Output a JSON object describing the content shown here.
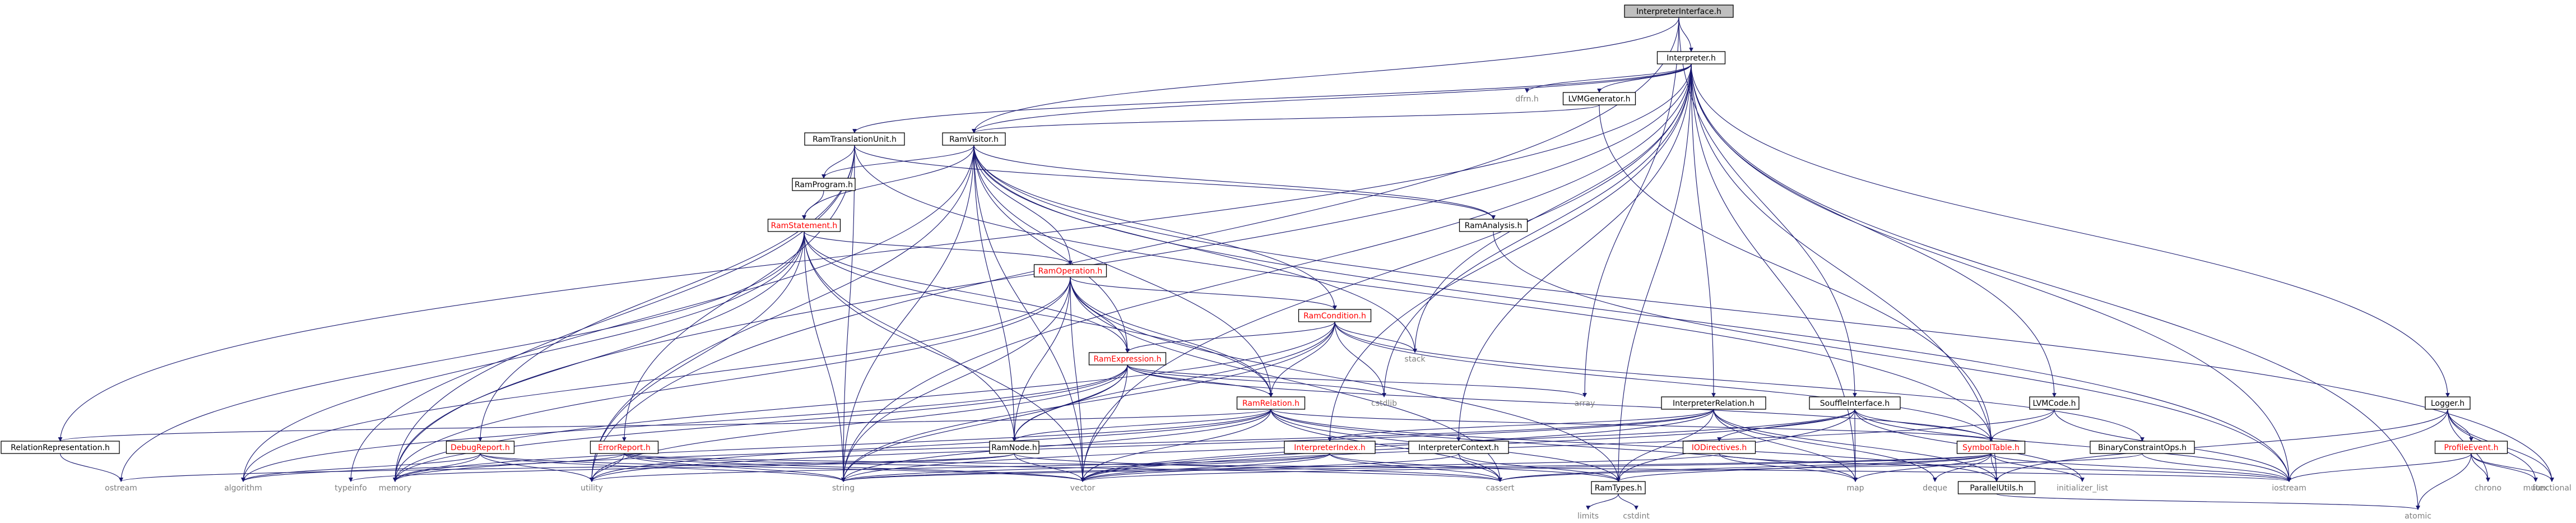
{
  "diagram": {
    "colors": {
      "edge": "#191970",
      "node_text_normal": "#000000",
      "node_text_header": "#ff0000",
      "node_text_system": "#7f7f7f",
      "node_border": "#000000",
      "root_fill": "#bfbfbf"
    },
    "nodes": [
      {
        "id": "n_root",
        "label": "InterpreterInterface.h",
        "style": "root"
      },
      {
        "id": "n_interp",
        "label": "Interpreter.h",
        "style": "file"
      },
      {
        "id": "n_dfrn",
        "label": "dfrn.h",
        "style": "system"
      },
      {
        "id": "n_llvmgen",
        "label": "LVMGenerator.h",
        "style": "file"
      },
      {
        "id": "n_ramvisitor",
        "label": "RamVisitor.h",
        "style": "file"
      },
      {
        "id": "n_ramtrans",
        "label": "RamTranslationUnit.h",
        "style": "file"
      },
      {
        "id": "n_ramprogram",
        "label": "RamProgram.h",
        "style": "file"
      },
      {
        "id": "n_ramanalysis",
        "label": "RamAnalysis.h",
        "style": "file"
      },
      {
        "id": "n_ramstatement",
        "label": "RamStatement.h",
        "style": "header"
      },
      {
        "id": "n_ramoperation",
        "label": "RamOperation.h",
        "style": "header"
      },
      {
        "id": "n_ramcondition",
        "label": "RamCondition.h",
        "style": "header"
      },
      {
        "id": "n_ramexpression",
        "label": "RamExpression.h",
        "style": "header"
      },
      {
        "id": "n_ramrelation",
        "label": "RamRelation.h",
        "style": "header"
      },
      {
        "id": "n_ramnode",
        "label": "RamNode.h",
        "style": "file"
      },
      {
        "id": "n_ramtypes",
        "label": "RamTypes.h",
        "style": "file"
      },
      {
        "id": "n_relrep",
        "label": "RelationRepresentation.h",
        "style": "file"
      },
      {
        "id": "n_debugreport",
        "label": "DebugReport.h",
        "style": "header"
      },
      {
        "id": "n_errorreport",
        "label": "ErrorReport.h",
        "style": "header"
      },
      {
        "id": "n_interprel",
        "label": "InterpreterRelation.h",
        "style": "file"
      },
      {
        "id": "n_interpindex",
        "label": "InterpreterIndex.h",
        "style": "header"
      },
      {
        "id": "n_interpctx",
        "label": "InterpreterContext.h",
        "style": "file"
      },
      {
        "id": "n_souffleif",
        "label": "SouffleInterface.h",
        "style": "file"
      },
      {
        "id": "n_iodirectives",
        "label": "IODirectives.h",
        "style": "header"
      },
      {
        "id": "n_symboltable",
        "label": "SymbolTable.h",
        "style": "header"
      },
      {
        "id": "n_binconstraint",
        "label": "BinaryConstraintOps.h",
        "style": "file"
      },
      {
        "id": "n_llvmcode",
        "label": "LVMCode.h",
        "style": "file"
      },
      {
        "id": "n_logger",
        "label": "Logger.h",
        "style": "file"
      },
      {
        "id": "n_profilevent",
        "label": "ProfileEvent.h",
        "style": "header"
      },
      {
        "id": "n_parallelutils",
        "label": "ParallelUtils.h",
        "style": "file"
      },
      {
        "id": "n_stack",
        "label": "stack",
        "style": "system"
      },
      {
        "id": "n_cstdlib",
        "label": "cstdlib",
        "style": "system"
      },
      {
        "id": "n_array",
        "label": "array",
        "style": "system"
      },
      {
        "id": "n_ostream",
        "label": "ostream",
        "style": "system"
      },
      {
        "id": "n_algorithm",
        "label": "algorithm",
        "style": "system"
      },
      {
        "id": "n_typeinfo",
        "label": "typeinfo",
        "style": "system"
      },
      {
        "id": "n_memory",
        "label": "memory",
        "style": "system"
      },
      {
        "id": "n_utility",
        "label": "utility",
        "style": "system"
      },
      {
        "id": "n_string",
        "label": "string",
        "style": "system"
      },
      {
        "id": "n_vector",
        "label": "vector",
        "style": "system"
      },
      {
        "id": "n_cassert",
        "label": "cassert",
        "style": "system"
      },
      {
        "id": "n_map",
        "label": "map",
        "style": "system"
      },
      {
        "id": "n_deque",
        "label": "deque",
        "style": "system"
      },
      {
        "id": "n_initlist",
        "label": "initializer_list",
        "style": "system"
      },
      {
        "id": "n_iostream",
        "label": "iostream",
        "style": "system"
      },
      {
        "id": "n_chrono",
        "label": "chrono",
        "style": "system"
      },
      {
        "id": "n_mutex",
        "label": "mutex",
        "style": "system"
      },
      {
        "id": "n_functional",
        "label": "functional",
        "style": "system"
      },
      {
        "id": "n_atomic",
        "label": "atomic",
        "style": "system"
      },
      {
        "id": "n_limits",
        "label": "limits",
        "style": "system"
      },
      {
        "id": "n_cstdint",
        "label": "cstdint",
        "style": "system"
      }
    ],
    "edges": [
      [
        "n_root",
        "n_interp"
      ],
      [
        "n_root",
        "n_ramvisitor"
      ],
      [
        "n_root",
        "n_souffleif"
      ],
      [
        "n_root",
        "n_utility"
      ],
      [
        "n_root",
        "n_array"
      ],
      [
        "n_interp",
        "n_dfrn"
      ],
      [
        "n_interp",
        "n_llvmgen"
      ],
      [
        "n_interp",
        "n_ramvisitor"
      ],
      [
        "n_interp",
        "n_ramtrans"
      ],
      [
        "n_interp",
        "n_relrep"
      ],
      [
        "n_interp",
        "n_interprel"
      ],
      [
        "n_interp",
        "n_interpindex"
      ],
      [
        "n_interp",
        "n_interpctx"
      ],
      [
        "n_interp",
        "n_llvmcode"
      ],
      [
        "n_interp",
        "n_logger"
      ],
      [
        "n_interp",
        "n_stack"
      ],
      [
        "n_interp",
        "n_cstdlib"
      ],
      [
        "n_interp",
        "n_iostream"
      ],
      [
        "n_interp",
        "n_atomic"
      ],
      [
        "n_interp",
        "n_ramtypes"
      ],
      [
        "n_interp",
        "n_parallelutils"
      ],
      [
        "n_interp",
        "n_string"
      ],
      [
        "n_interp",
        "n_vector"
      ],
      [
        "n_interp",
        "n_map"
      ],
      [
        "n_interp",
        "n_memory"
      ],
      [
        "n_llvmgen",
        "n_ramvisitor"
      ],
      [
        "n_llvmgen",
        "n_symboltable"
      ],
      [
        "n_ramtrans",
        "n_ramprogram"
      ],
      [
        "n_ramtrans",
        "n_ramanalysis"
      ],
      [
        "n_ramtrans",
        "n_debugreport"
      ],
      [
        "n_ramtrans",
        "n_errorreport"
      ],
      [
        "n_ramtrans",
        "n_symboltable"
      ],
      [
        "n_ramtrans",
        "n_memory"
      ],
      [
        "n_ramtrans",
        "n_string"
      ],
      [
        "n_ramvisitor",
        "n_ramprogram"
      ],
      [
        "n_ramvisitor",
        "n_ramanalysis"
      ],
      [
        "n_ramvisitor",
        "n_ramstatement"
      ],
      [
        "n_ramvisitor",
        "n_ramoperation"
      ],
      [
        "n_ramvisitor",
        "n_ramcondition"
      ],
      [
        "n_ramvisitor",
        "n_ramexpression"
      ],
      [
        "n_ramvisitor",
        "n_ramrelation"
      ],
      [
        "n_ramvisitor",
        "n_ramnode"
      ],
      [
        "n_ramvisitor",
        "n_functional"
      ],
      [
        "n_ramvisitor",
        "n_typeinfo"
      ],
      [
        "n_ramvisitor",
        "n_utility"
      ],
      [
        "n_ramvisitor",
        "n_vector"
      ],
      [
        "n_ramvisitor",
        "n_string"
      ],
      [
        "n_ramvisitor",
        "n_iostream"
      ],
      [
        "n_ramvisitor",
        "n_stack"
      ],
      [
        "n_ramprogram",
        "n_ramstatement"
      ],
      [
        "n_ramanalysis",
        "n_iostream"
      ],
      [
        "n_ramstatement",
        "n_ramoperation"
      ],
      [
        "n_ramstatement",
        "n_ramexpression"
      ],
      [
        "n_ramstatement",
        "n_ramrelation"
      ],
      [
        "n_ramstatement",
        "n_ramnode"
      ],
      [
        "n_ramstatement",
        "n_algorithm"
      ],
      [
        "n_ramstatement",
        "n_memory"
      ],
      [
        "n_ramstatement",
        "n_ostream"
      ],
      [
        "n_ramstatement",
        "n_string"
      ],
      [
        "n_ramstatement",
        "n_utility"
      ],
      [
        "n_ramstatement",
        "n_vector"
      ],
      [
        "n_ramoperation",
        "n_ramcondition"
      ],
      [
        "n_ramoperation",
        "n_ramexpression"
      ],
      [
        "n_ramoperation",
        "n_ramrelation"
      ],
      [
        "n_ramoperation",
        "n_ramnode"
      ],
      [
        "n_ramoperation",
        "n_ramtypes"
      ],
      [
        "n_ramoperation",
        "n_cassert"
      ],
      [
        "n_ramoperation",
        "n_string"
      ],
      [
        "n_ramoperation",
        "n_vector"
      ],
      [
        "n_ramoperation",
        "n_memory"
      ],
      [
        "n_ramoperation",
        "n_algorithm"
      ],
      [
        "n_ramcondition",
        "n_ramexpression"
      ],
      [
        "n_ramcondition",
        "n_ramrelation"
      ],
      [
        "n_ramcondition",
        "n_ramnode"
      ],
      [
        "n_ramcondition",
        "n_binconstraint"
      ],
      [
        "n_ramcondition",
        "n_symboltable"
      ],
      [
        "n_ramcondition",
        "n_stack"
      ],
      [
        "n_ramcondition",
        "n_cstdlib"
      ],
      [
        "n_ramcondition",
        "n_memory"
      ],
      [
        "n_ramcondition",
        "n_string"
      ],
      [
        "n_ramexpression",
        "n_ramrelation"
      ],
      [
        "n_ramexpression",
        "n_ramnode"
      ],
      [
        "n_ramexpression",
        "n_symboltable"
      ],
      [
        "n_ramexpression",
        "n_array"
      ],
      [
        "n_ramexpression",
        "n_cstdlib"
      ],
      [
        "n_ramexpression",
        "n_utility"
      ],
      [
        "n_ramexpression",
        "n_algorithm"
      ],
      [
        "n_ramexpression",
        "n_memory"
      ],
      [
        "n_ramexpression",
        "n_string"
      ],
      [
        "n_ramexpression",
        "n_vector"
      ],
      [
        "n_ramrelation",
        "n_ramnode"
      ],
      [
        "n_ramrelation",
        "n_ramtypes"
      ],
      [
        "n_ramrelation",
        "n_relrep"
      ],
      [
        "n_ramrelation",
        "n_symboltable"
      ],
      [
        "n_ramrelation",
        "n_parallelutils"
      ],
      [
        "n_ramrelation",
        "n_cassert"
      ],
      [
        "n_ramrelation",
        "n_string"
      ],
      [
        "n_ramrelation",
        "n_utility"
      ],
      [
        "n_ramrelation",
        "n_vector"
      ],
      [
        "n_ramrelation",
        "n_memory"
      ],
      [
        "n_ramrelation",
        "n_map"
      ],
      [
        "n_ramnode",
        "n_cassert"
      ],
      [
        "n_ramnode",
        "n_vector"
      ],
      [
        "n_ramnode",
        "n_ostream"
      ],
      [
        "n_ramnode",
        "n_typeinfo"
      ],
      [
        "n_ramtypes",
        "n_limits"
      ],
      [
        "n_ramtypes",
        "n_cstdint"
      ],
      [
        "n_relrep",
        "n_ostream"
      ],
      [
        "n_debugreport",
        "n_algorithm"
      ],
      [
        "n_debugreport",
        "n_memory"
      ],
      [
        "n_debugreport",
        "n_string"
      ],
      [
        "n_debugreport",
        "n_utility"
      ],
      [
        "n_debugreport",
        "n_vector"
      ],
      [
        "n_errorreport",
        "n_algorithm"
      ],
      [
        "n_errorreport",
        "n_cassert"
      ],
      [
        "n_errorreport",
        "n_iostream"
      ],
      [
        "n_errorreport",
        "n_string"
      ],
      [
        "n_errorreport",
        "n_utility"
      ],
      [
        "n_errorreport",
        "n_vector"
      ],
      [
        "n_interprel",
        "n_interpindex"
      ],
      [
        "n_interprel",
        "n_ramtypes"
      ],
      [
        "n_interprel",
        "n_parallelutils"
      ],
      [
        "n_interprel",
        "n_deque"
      ],
      [
        "n_interprel",
        "n_map"
      ],
      [
        "n_interprel",
        "n_memory"
      ],
      [
        "n_interprel",
        "n_utility"
      ],
      [
        "n_interprel",
        "n_vector"
      ],
      [
        "n_interpindex",
        "n_ramtypes"
      ],
      [
        "n_interpindex",
        "n_cassert"
      ],
      [
        "n_interpindex",
        "n_string"
      ],
      [
        "n_interpindex",
        "n_utility"
      ],
      [
        "n_interpindex",
        "n_vector"
      ],
      [
        "n_interpctx",
        "n_ramtypes"
      ],
      [
        "n_interpctx",
        "n_cassert"
      ],
      [
        "n_interpctx",
        "n_vector"
      ],
      [
        "n_souffleif",
        "n_ramtypes"
      ],
      [
        "n_souffleif",
        "n_symboltable"
      ],
      [
        "n_souffleif",
        "n_iodirectives"
      ],
      [
        "n_souffleif",
        "n_initlist"
      ],
      [
        "n_souffleif",
        "n_iostream"
      ],
      [
        "n_souffleif",
        "n_string"
      ],
      [
        "n_souffleif",
        "n_vector"
      ],
      [
        "n_souffleif",
        "n_map"
      ],
      [
        "n_iodirectives",
        "n_map"
      ],
      [
        "n_iodirectives",
        "n_string"
      ],
      [
        "n_iodirectives",
        "n_iostream"
      ],
      [
        "n_symboltable",
        "n_parallelutils"
      ],
      [
        "n_symboltable",
        "n_ramtypes"
      ],
      [
        "n_symboltable",
        "n_deque"
      ],
      [
        "n_symboltable",
        "n_initlist"
      ],
      [
        "n_symboltable",
        "n_iostream"
      ],
      [
        "n_symboltable",
        "n_map"
      ],
      [
        "n_symboltable",
        "n_string"
      ],
      [
        "n_symboltable",
        "n_vector"
      ],
      [
        "n_symboltable",
        "n_cassert"
      ],
      [
        "n_binconstraint",
        "n_cassert"
      ],
      [
        "n_binconstraint",
        "n_iostream"
      ],
      [
        "n_llvmcode",
        "n_symboltable"
      ],
      [
        "n_llvmcode",
        "n_iostream"
      ],
      [
        "n_llvmcode",
        "n_vector"
      ],
      [
        "n_logger",
        "n_profilevent"
      ],
      [
        "n_logger",
        "n_chrono"
      ],
      [
        "n_logger",
        "n_iostream"
      ],
      [
        "n_logger",
        "n_functional"
      ],
      [
        "n_logger",
        "n_mutex"
      ],
      [
        "n_logger",
        "n_parallelutils"
      ],
      [
        "n_profilevent",
        "n_chrono"
      ],
      [
        "n_profilevent",
        "n_atomic"
      ],
      [
        "n_profilevent",
        "n_iostream"
      ],
      [
        "n_profilevent",
        "n_mutex"
      ],
      [
        "n_profilevent",
        "n_functional"
      ],
      [
        "n_parallelutils",
        "n_atomic"
      ]
    ]
  }
}
